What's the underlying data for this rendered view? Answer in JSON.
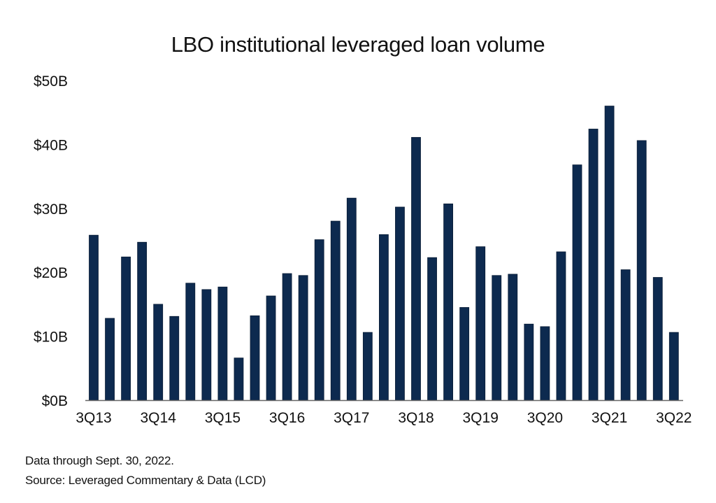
{
  "chart_data": {
    "type": "bar",
    "title": "LBO institutional leveraged loan volume",
    "xlabel": "",
    "ylabel": "",
    "ylim": [
      0,
      50
    ],
    "yticks": [
      "$0B",
      "$10B",
      "$20B",
      "$30B",
      "$40B",
      "$50B"
    ],
    "xtick_labels": [
      "3Q13",
      "3Q14",
      "3Q15",
      "3Q16",
      "3Q17",
      "3Q18",
      "3Q19",
      "3Q20",
      "3Q21",
      "3Q22"
    ],
    "categories": [
      "3Q13",
      "4Q13",
      "1Q14",
      "2Q14",
      "3Q14",
      "4Q14",
      "1Q15",
      "2Q15",
      "3Q15",
      "4Q15",
      "1Q16",
      "2Q16",
      "3Q16",
      "4Q16",
      "1Q17",
      "2Q17",
      "3Q17",
      "4Q17",
      "1Q18",
      "2Q18",
      "3Q18",
      "4Q18",
      "1Q19",
      "2Q19",
      "3Q19",
      "4Q19",
      "1Q20",
      "2Q20",
      "3Q20",
      "4Q20",
      "1Q21",
      "2Q21",
      "3Q21",
      "4Q21",
      "1Q22",
      "2Q22",
      "3Q22"
    ],
    "values": [
      25.8,
      12.8,
      22.4,
      24.7,
      15.0,
      13.1,
      18.3,
      17.3,
      17.7,
      6.6,
      13.2,
      16.3,
      19.8,
      19.5,
      25.1,
      28.0,
      31.6,
      10.6,
      25.9,
      30.2,
      41.1,
      22.3,
      30.7,
      14.5,
      24.0,
      19.5,
      19.7,
      11.9,
      11.5,
      23.2,
      36.8,
      42.4,
      46.0,
      20.4,
      40.6,
      19.2,
      10.6
    ],
    "unit": "$B",
    "bar_color": "#0d2a4f",
    "grid": false,
    "legend": "none"
  },
  "footnotes": {
    "data_through": "Data through Sept. 30, 2022.",
    "source": "Source: Leveraged Commentary & Data (LCD)"
  }
}
